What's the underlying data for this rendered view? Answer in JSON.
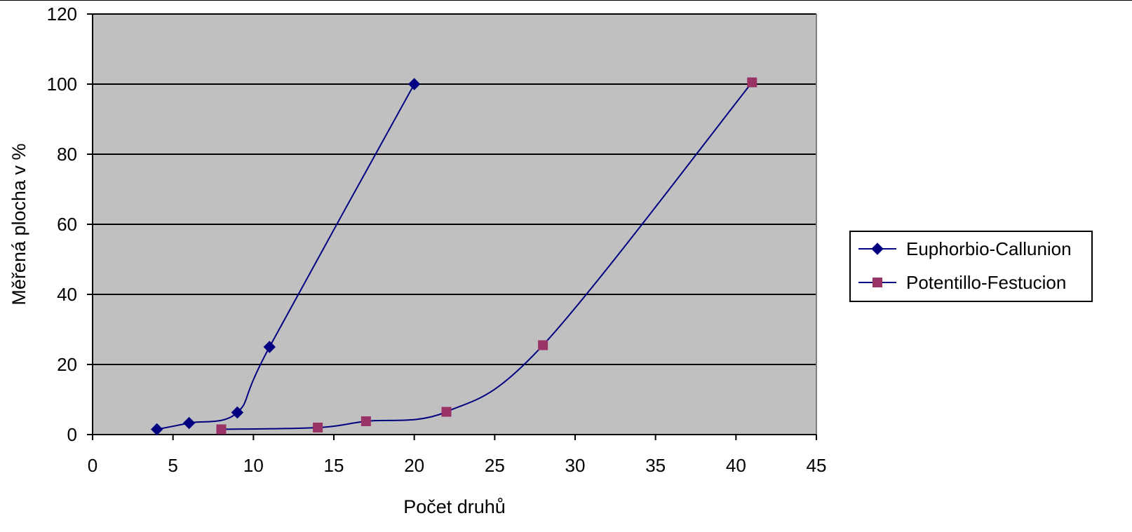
{
  "chart_data": {
    "type": "line",
    "title": "",
    "xlabel": "Počet druhů",
    "ylabel": "Měřená plocha v %",
    "xlim": [
      0,
      45
    ],
    "ylim": [
      0,
      120
    ],
    "x_ticks": [
      0,
      5,
      10,
      15,
      20,
      25,
      30,
      35,
      40,
      45
    ],
    "y_ticks": [
      0,
      20,
      40,
      60,
      80,
      100,
      120
    ],
    "grid": "horizontal",
    "plot_background": "#c0c0c0",
    "legend_position": "right",
    "smooth": true,
    "series": [
      {
        "name": "Euphorbio-Callunion",
        "marker": "diamond",
        "color": "#000080",
        "marker_color": "#000080",
        "points": [
          {
            "x": 4,
            "y": 1.5
          },
          {
            "x": 6,
            "y": 3.3
          },
          {
            "x": 9,
            "y": 6.3
          },
          {
            "x": 11,
            "y": 25
          },
          {
            "x": 20,
            "y": 100
          }
        ]
      },
      {
        "name": "Potentillo-Festucion",
        "marker": "square",
        "color": "#000080",
        "marker_color": "#993366",
        "points": [
          {
            "x": 8,
            "y": 1.5
          },
          {
            "x": 14,
            "y": 2
          },
          {
            "x": 17,
            "y": 3.8
          },
          {
            "x": 22,
            "y": 6.5
          },
          {
            "x": 28,
            "y": 25.5
          },
          {
            "x": 41,
            "y": 100.5
          }
        ]
      }
    ]
  }
}
